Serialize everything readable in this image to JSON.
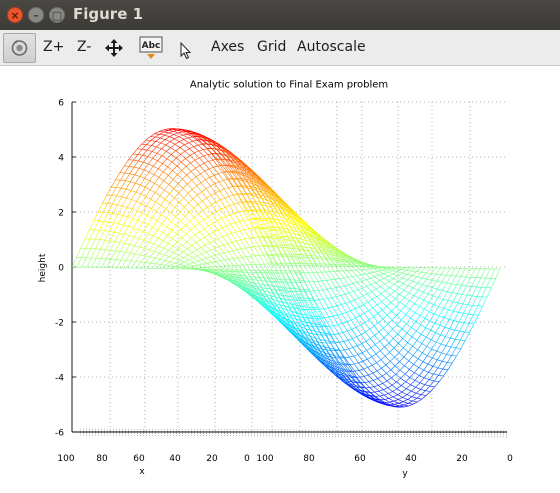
{
  "window": {
    "title": "Figure 1"
  },
  "toolbar": {
    "zoom_in": "Z+",
    "zoom_out": "Z-",
    "pan_icon": "move-arrows-icon",
    "text_icon_label": "Abc",
    "pointer_icon": "pointer-arrow-icon",
    "rotate_icon": "rotate-icon",
    "axes": "Axes",
    "grid": "Grid",
    "autoscale": "Autoscale"
  },
  "chart_data": {
    "type": "surface",
    "title": "Analytic solution to Final Exam problem",
    "xlabel": "x",
    "ylabel": "y",
    "zlabel": "height",
    "z_ticks": [
      "6",
      "4",
      "2",
      "0",
      "-2",
      "-4",
      "-6"
    ],
    "x_ticks": [
      "100",
      "80",
      "60",
      "40",
      "20",
      "0"
    ],
    "y_ticks": [
      "100",
      "80",
      "60",
      "40",
      "20",
      "0"
    ],
    "zlim": [
      -6,
      6
    ],
    "grid": true,
    "colormap": [
      "#0000ff",
      "#00ffff",
      "#ffff00",
      "#ff0000"
    ]
  }
}
